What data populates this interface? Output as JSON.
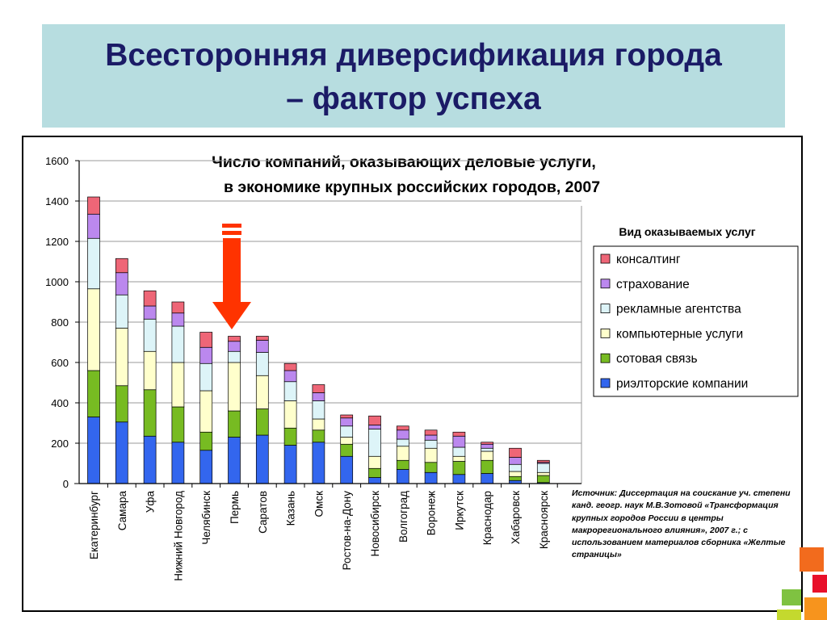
{
  "slide": {
    "title_line1": "Всесторонняя диверсификация города",
    "title_line2": "– фактор успеха"
  },
  "chart_data": {
    "type": "bar",
    "stacked": true,
    "title_line1": "Число компаний, оказывающих деловые услуги,",
    "title_line2": "в экономике крупных российских городов, 2007",
    "legend_title": "Вид оказываемых услуг",
    "ylim": [
      0,
      1600
    ],
    "yticks": [
      0,
      200,
      400,
      600,
      800,
      1000,
      1200,
      1400,
      1600
    ],
    "categories": [
      "Екатеринбург",
      "Самара",
      "Уфа",
      "Нижний Новгород",
      "Челябинск",
      "Пермь",
      "Саратов",
      "Казань",
      "Омск",
      "Ростов-на-Дону",
      "Новосибирск",
      "Волгоград",
      "Воронеж",
      "Иркутск",
      "Краснодар",
      "Хабаровск",
      "Красноярск"
    ],
    "series": [
      {
        "name": "риэлторские компании",
        "color": "#3366ee",
        "values": [
          330,
          305,
          235,
          205,
          165,
          230,
          240,
          190,
          205,
          135,
          30,
          70,
          55,
          45,
          50,
          15,
          5
        ]
      },
      {
        "name": "сотовая связь",
        "color": "#77bb22",
        "values": [
          230,
          180,
          230,
          175,
          90,
          130,
          130,
          85,
          60,
          60,
          45,
          45,
          50,
          65,
          65,
          20,
          35
        ]
      },
      {
        "name": "компьютерные услуги",
        "color": "#ffffcc",
        "values": [
          405,
          285,
          190,
          220,
          205,
          240,
          165,
          135,
          55,
          35,
          60,
          70,
          70,
          25,
          45,
          25,
          15
        ]
      },
      {
        "name": "рекламные агентства",
        "color": "#ddf4f8",
        "values": [
          250,
          165,
          160,
          180,
          135,
          55,
          115,
          95,
          90,
          55,
          135,
          35,
          40,
          45,
          15,
          35,
          45
        ]
      },
      {
        "name": "страхование",
        "color": "#bb88ee",
        "values": [
          120,
          110,
          65,
          65,
          80,
          50,
          60,
          55,
          40,
          40,
          20,
          45,
          25,
          55,
          20,
          35,
          5
        ]
      },
      {
        "name": "консалтинг",
        "color": "#ee6677",
        "values": [
          85,
          70,
          75,
          55,
          75,
          25,
          20,
          35,
          40,
          15,
          45,
          20,
          25,
          20,
          10,
          45,
          10
        ]
      }
    ],
    "source": "Источник: Диссертация на соискание уч. степени канд. геогр. наук М.В.Зотовой «Трансформация крупных городов России в центры макрорегионального влияния», 2007 г.; с использованием материалов сборника «Желтые страницы»",
    "highlight": "Пермь"
  },
  "colors": {
    "title_bg": "#b7dde0",
    "title_text": "#1b1b66",
    "arrow": "#ff3300"
  }
}
